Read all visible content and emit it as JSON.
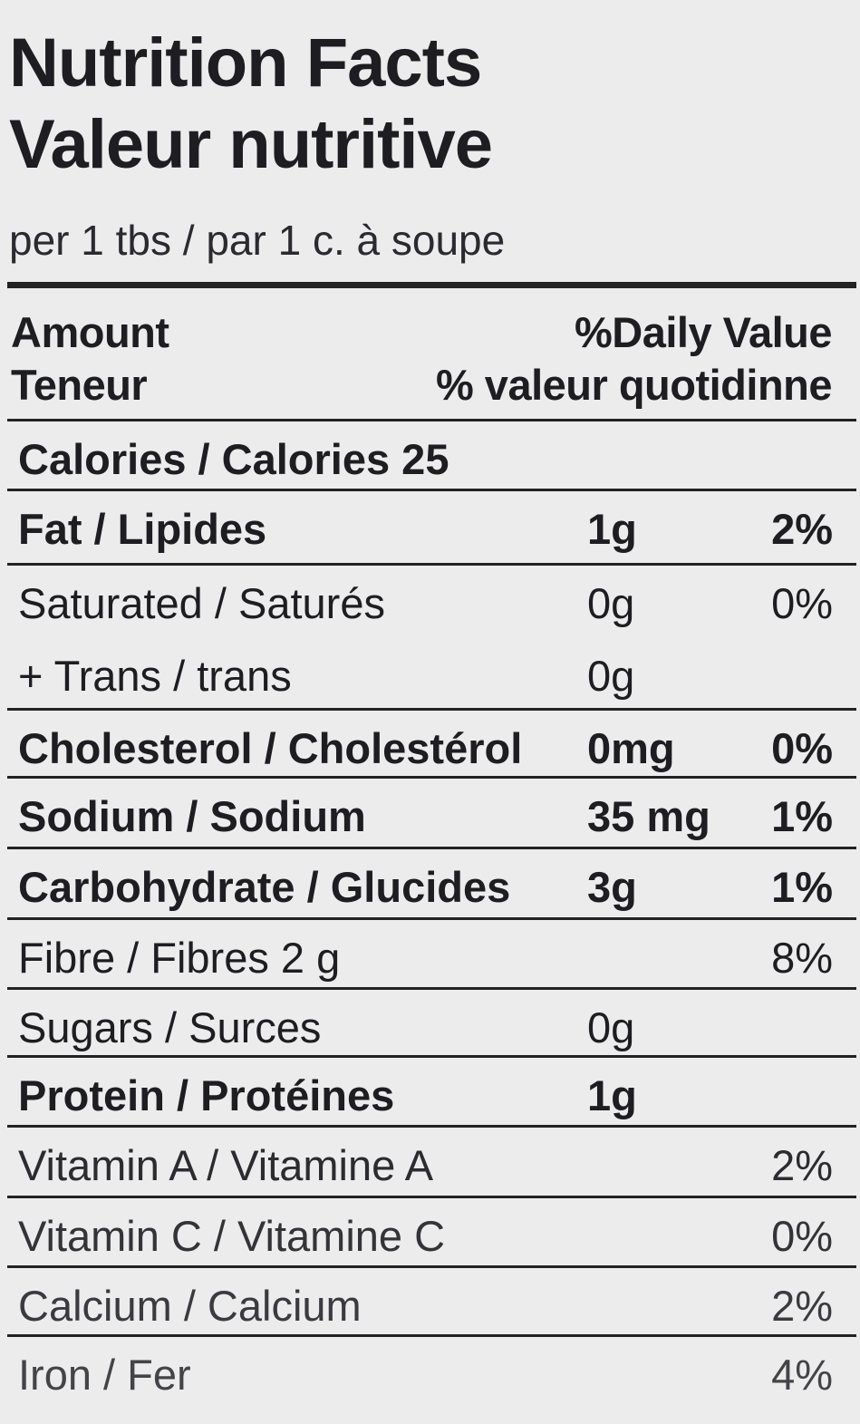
{
  "title_en": "Nutrition Facts",
  "title_fr": "Valeur nutritive",
  "serving": "per 1 tbs / par  1 c. à soupe",
  "header": {
    "amount_en": "Amount",
    "amount_fr": "Teneur",
    "dv_en": "%Daily Value",
    "dv_fr": "% valeur quotidinne"
  },
  "rows": [
    {
      "label": "Calories / Calories 25",
      "amount": "",
      "percent": "",
      "bold": true
    },
    {
      "label": "Fat / Lipides",
      "amount": "1g",
      "percent": "2%",
      "bold": true
    },
    {
      "label": "Saturated / Saturés",
      "amount": "0g",
      "percent": "0%",
      "bold": false
    },
    {
      "label": "+ Trans / trans",
      "amount": "0g",
      "percent": "",
      "bold": false
    },
    {
      "label": "Cholesterol / Cholestérol",
      "amount": "0mg",
      "percent": "0%",
      "bold": true
    },
    {
      "label": "Sodium / Sodium",
      "amount": "35 mg",
      "percent": "1%",
      "bold": true
    },
    {
      "label": "Carbohydrate / Glucides",
      "amount": "3g",
      "percent": "1%",
      "bold": true
    },
    {
      "label": "Fibre / Fibres 2 g",
      "amount": "",
      "percent": "8%",
      "bold": false
    },
    {
      "label": "Sugars / Surces",
      "amount": "0g",
      "percent": "",
      "bold": false
    },
    {
      "label": "Protein / Protéines",
      "amount": "1g",
      "percent": "",
      "bold": true
    },
    {
      "label": "Vitamin A / Vitamine A",
      "amount": "",
      "percent": "2%",
      "bold": false
    },
    {
      "label": "Vitamin C / Vitamine  C",
      "amount": "",
      "percent": "0%",
      "bold": false
    },
    {
      "label": "Calcium / Calcium",
      "amount": "",
      "percent": "2%",
      "bold": false
    },
    {
      "label": "Iron / Fer",
      "amount": "",
      "percent": "4%",
      "bold": false
    }
  ]
}
